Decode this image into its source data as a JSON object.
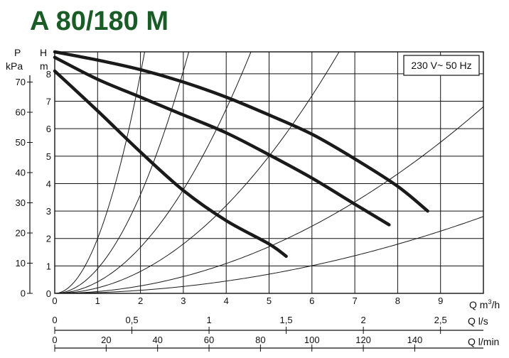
{
  "chart_data": {
    "type": "line",
    "title": "A 80/180 M",
    "badge": "230 V~ 50 Hz",
    "y_left": {
      "unit_top": "P",
      "unit_bottom": "kPa",
      "range": [
        0,
        80
      ],
      "ticks": [
        "0",
        "10",
        "20",
        "30",
        "40",
        "50",
        "60",
        "70"
      ]
    },
    "y_right": {
      "unit_top": "H",
      "unit_bottom": "m",
      "range": [
        0,
        8.8
      ],
      "ticks": [
        "0",
        "1",
        "2",
        "3",
        "4",
        "5",
        "6",
        "7",
        "8"
      ]
    },
    "x_axes": [
      {
        "label": "Q m³/h",
        "label_main": "Q m",
        "label_sup": "3",
        "label_tail": "/h",
        "range": [
          0,
          10
        ],
        "ticks": [
          "0",
          "1",
          "2",
          "3",
          "4",
          "5",
          "6",
          "7",
          "8",
          "9"
        ],
        "tick_values": [
          0,
          1,
          2,
          3,
          4,
          5,
          6,
          7,
          8,
          9
        ]
      },
      {
        "label": "Q l/s",
        "range": [
          0,
          2.778
        ],
        "ticks": [
          "0",
          "0,5",
          "1",
          "1,5",
          "2",
          "2,5"
        ],
        "tick_values": [
          0,
          0.5,
          1,
          1.5,
          2,
          2.5
        ]
      },
      {
        "label": "Q l/min",
        "range": [
          0,
          166.7
        ],
        "ticks": [
          "0",
          "20",
          "40",
          "60",
          "80",
          "100",
          "120",
          "140"
        ],
        "tick_values": [
          0,
          20,
          40,
          60,
          80,
          100,
          120,
          140
        ]
      }
    ],
    "grid": true,
    "series": [
      {
        "x": [
          0,
          1,
          2,
          3,
          4,
          5,
          6,
          7,
          8,
          8.7
        ],
        "y": [
          8.8,
          8.5,
          8.15,
          7.7,
          7.15,
          6.5,
          5.8,
          4.9,
          3.9,
          3.0
        ]
      },
      {
        "x": [
          0,
          1,
          2,
          3,
          4,
          5,
          6,
          7,
          7.8
        ],
        "y": [
          8.6,
          7.8,
          7.15,
          6.5,
          5.85,
          5.05,
          4.2,
          3.25,
          2.5
        ]
      },
      {
        "x": [
          0,
          1,
          2,
          3,
          4,
          5,
          5.4
        ],
        "y": [
          8.1,
          6.65,
          5.15,
          3.75,
          2.65,
          1.8,
          1.35
        ]
      }
    ],
    "system_curves": [
      {
        "k": 2.0
      },
      {
        "k": 0.9
      },
      {
        "k": 0.42
      },
      {
        "k": 0.2
      },
      {
        "k": 0.068
      },
      {
        "k": 0.028
      }
    ]
  }
}
